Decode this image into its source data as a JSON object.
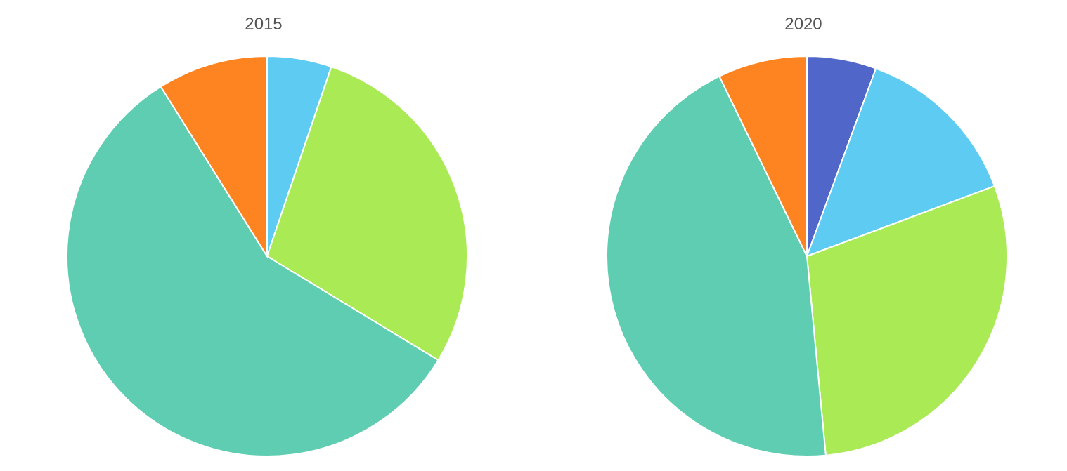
{
  "chart_data": [
    {
      "type": "pie",
      "title": "2015",
      "categories": [
        null,
        null,
        null,
        null
      ],
      "values": [
        5.2,
        28.5,
        57.4,
        8.9
      ],
      "colors": [
        "#5ecbf2",
        "#a9ea55",
        "#5ecdb1",
        "#fd8421"
      ],
      "legend": false
    },
    {
      "type": "pie",
      "title": "2020",
      "categories": [
        null,
        null,
        null,
        null,
        null
      ],
      "values": [
        5.6,
        13.7,
        29.2,
        44.3,
        7.2
      ],
      "colors": [
        "#5066c8",
        "#5ecbf2",
        "#a9ea55",
        "#5ecdb1",
        "#fd8421"
      ],
      "legend": false
    }
  ]
}
